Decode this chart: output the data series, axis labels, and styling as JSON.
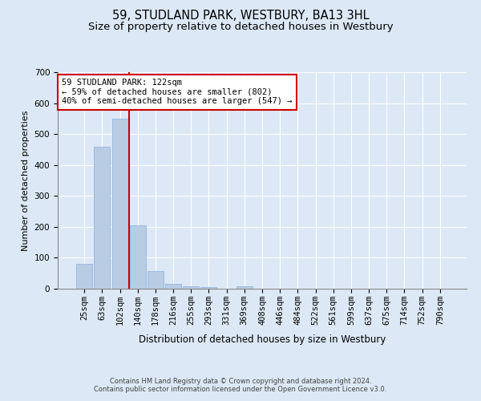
{
  "title": "59, STUDLAND PARK, WESTBURY, BA13 3HL",
  "subtitle": "Size of property relative to detached houses in Westbury",
  "xlabel": "Distribution of detached houses by size in Westbury",
  "ylabel": "Number of detached properties",
  "categories": [
    "25sqm",
    "63sqm",
    "102sqm",
    "140sqm",
    "178sqm",
    "216sqm",
    "255sqm",
    "293sqm",
    "331sqm",
    "369sqm",
    "408sqm",
    "446sqm",
    "484sqm",
    "522sqm",
    "561sqm",
    "599sqm",
    "637sqm",
    "675sqm",
    "714sqm",
    "752sqm",
    "790sqm"
  ],
  "bar_heights": [
    80,
    460,
    550,
    205,
    58,
    15,
    7,
    5,
    0,
    8,
    0,
    0,
    0,
    0,
    0,
    0,
    0,
    0,
    0,
    0,
    0
  ],
  "bar_color": "#b8ccе8",
  "bar_edge_color": "#8ab0d0",
  "property_line_x": 2.5,
  "annotation_text": "59 STUDLAND PARK: 122sqm\n← 59% of detached houses are smaller (802)\n40% of semi-detached houses are larger (547) →",
  "annotation_box_facecolor": "#ffffff",
  "annotation_box_edgecolor": "#cc0000",
  "red_line_color": "#cc0000",
  "ylim": [
    0,
    700
  ],
  "yticks": [
    0,
    100,
    200,
    300,
    400,
    500,
    600,
    700
  ],
  "title_fontsize": 10.5,
  "subtitle_fontsize": 9.5,
  "xlabel_fontsize": 8.5,
  "ylabel_fontsize": 8,
  "tick_fontsize": 7.5,
  "annot_fontsize": 7.5,
  "footer_text": "Contains HM Land Registry data © Crown copyright and database right 2024.\nContains public sector information licensed under the Open Government Licence v3.0.",
  "footer_fontsize": 6,
  "bg_color": "#dce8f5",
  "plot_bg_color": "#dce8f5",
  "grid_color": "#ffffff"
}
